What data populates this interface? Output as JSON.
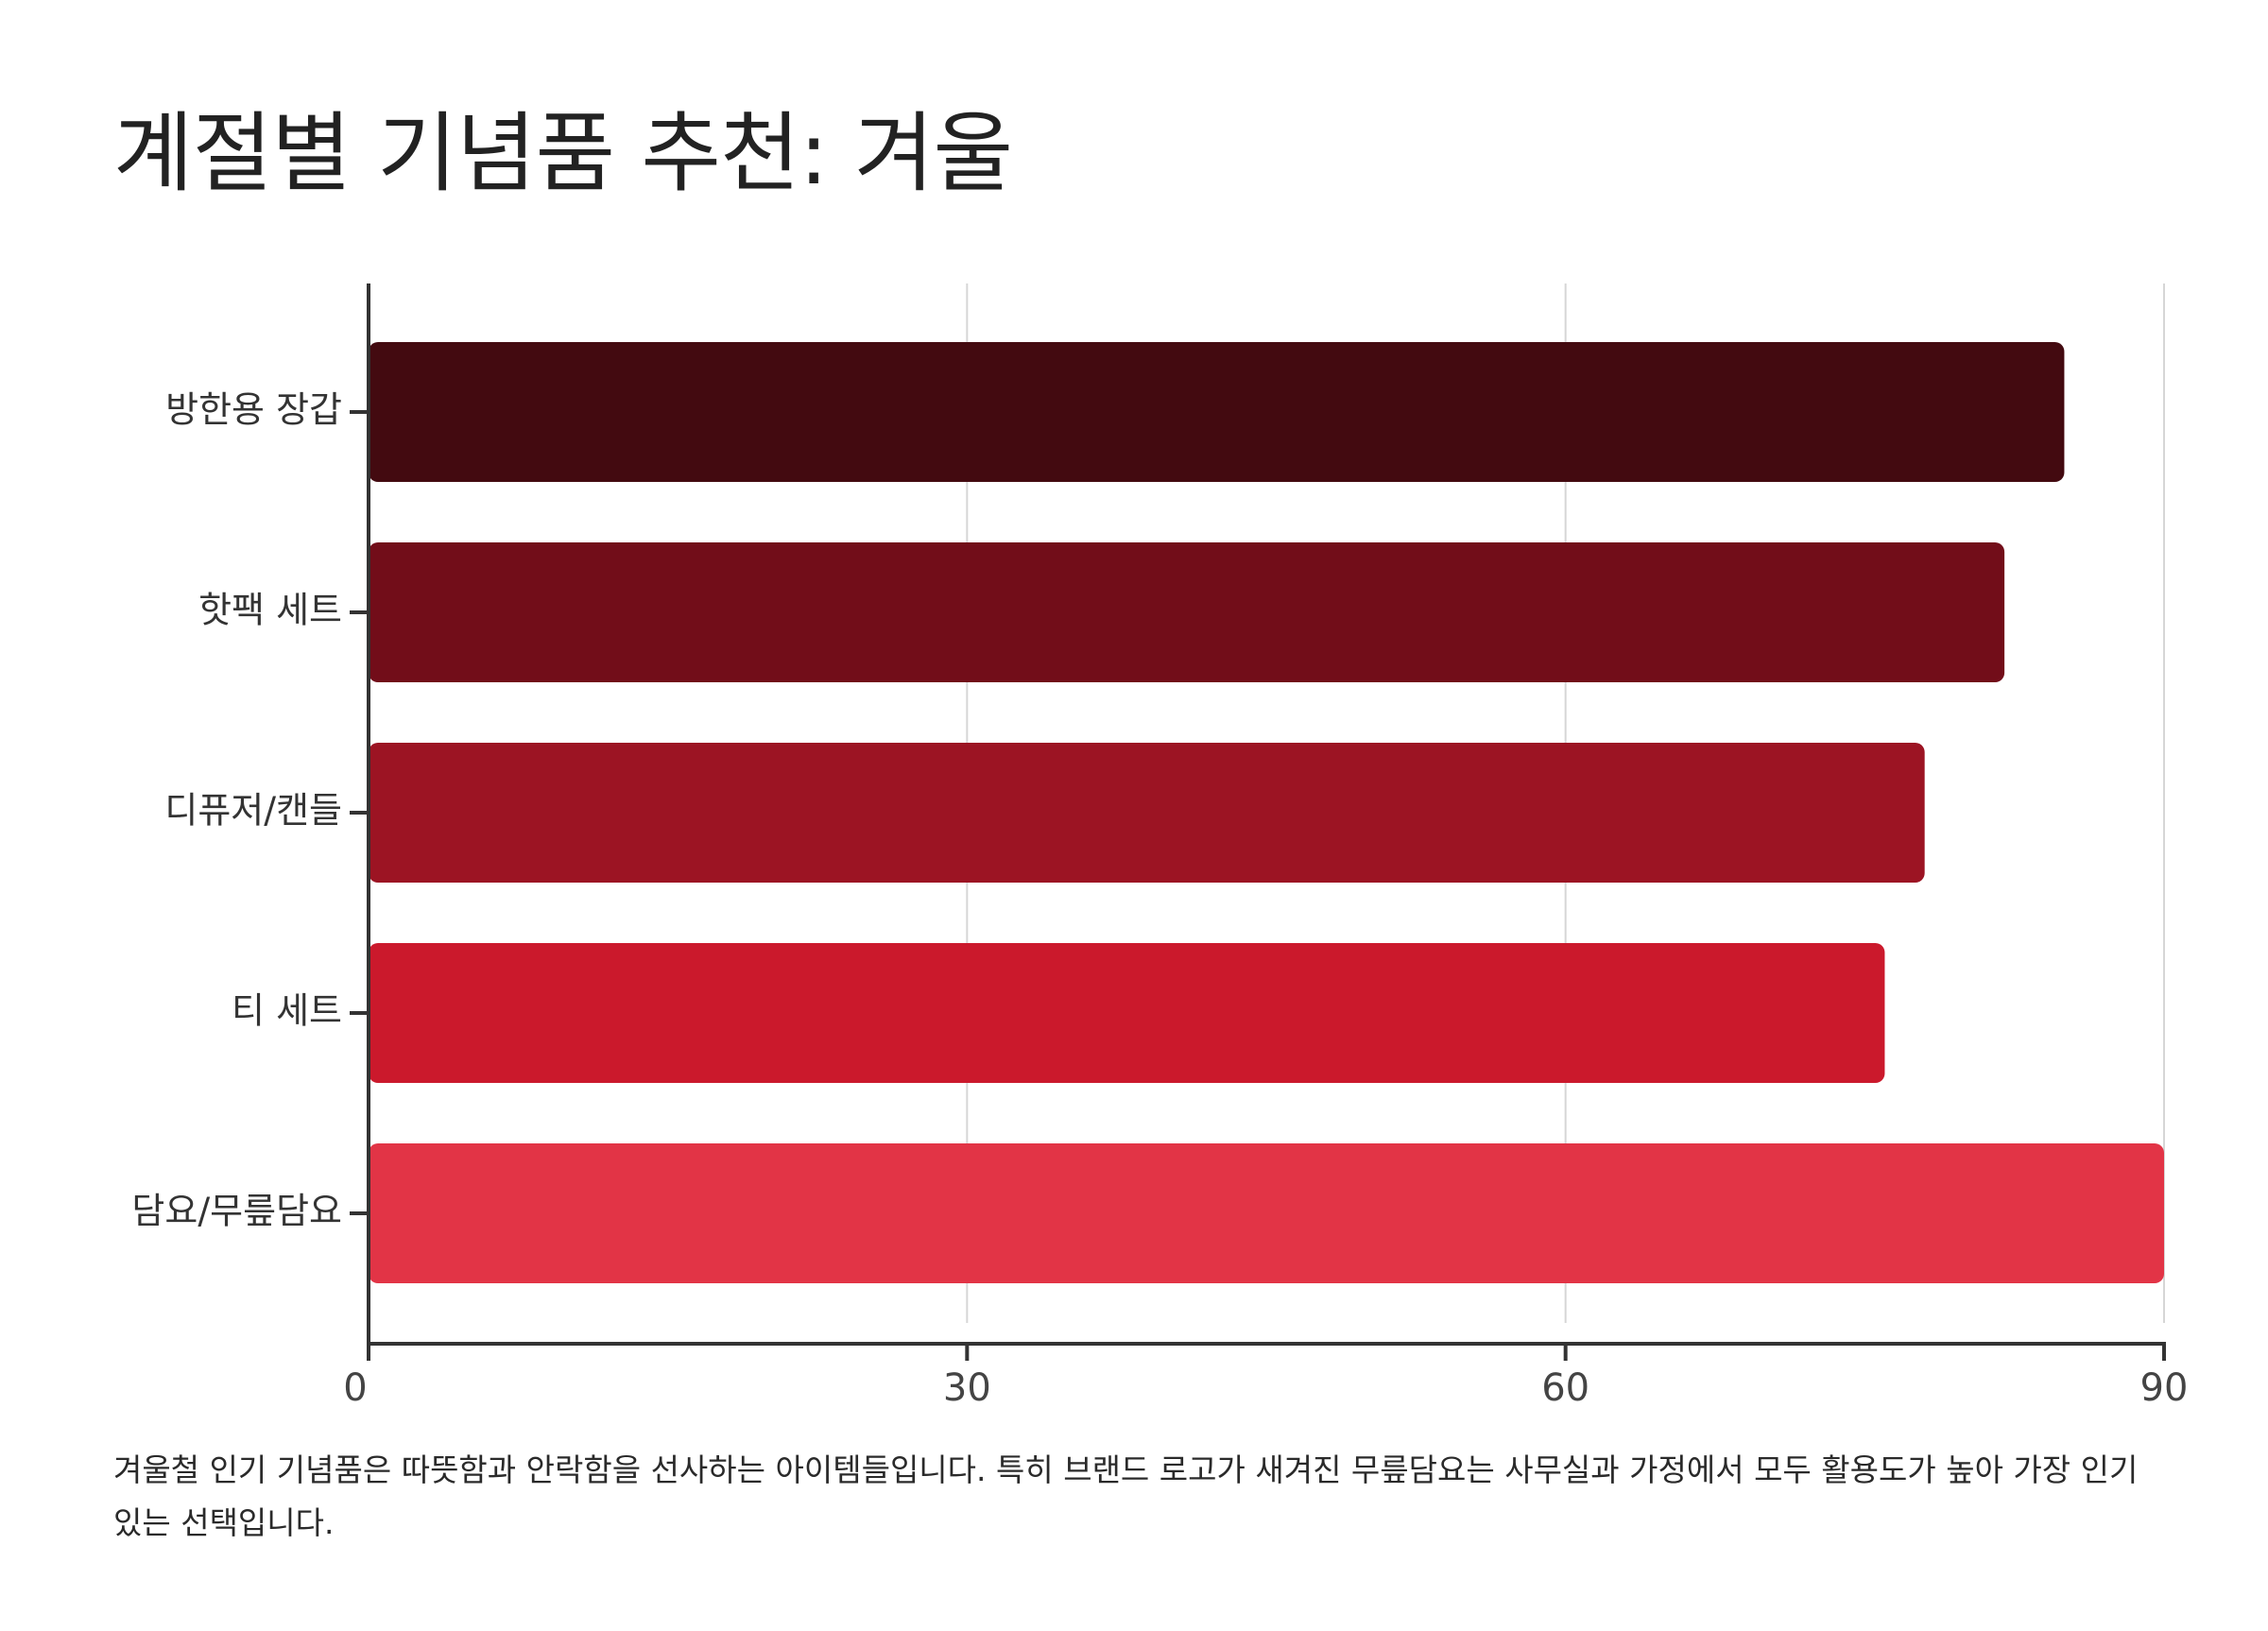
{
  "title": "계절별 기념품 추천: 겨울",
  "caption": "겨울철 인기 기념품은 따뜻함과 안락함을 선사하는 아이템들입니다. 특히 브랜드 로고가 새겨진 무릎담요는 사무실과 가정에서 모두 활용도가 높아 가장 인기 있는 선택입니다.",
  "chart_data": {
    "type": "bar",
    "orientation": "horizontal",
    "categories": [
      "방한용 장갑",
      "핫팩 세트",
      "디퓨저/캔들",
      "티 세트",
      "담요/무릎담요"
    ],
    "values": [
      85,
      82,
      78,
      76,
      90
    ],
    "colors": [
      "#430A10",
      "#720D19",
      "#9C1423",
      "#CB192C",
      "#E23446"
    ],
    "xlim": [
      0,
      90
    ],
    "xticks": [
      "0",
      "30",
      "60",
      "90"
    ],
    "xlabel": "",
    "ylabel": "",
    "grid": "vertical"
  }
}
